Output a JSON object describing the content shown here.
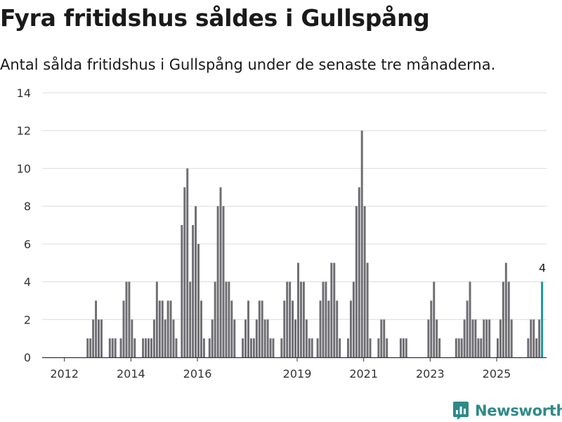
{
  "title": "Fyra fritidshus såldes i Gullspång",
  "subtitle": "Antal sålda fritidshus i Gullspång under de senaste tre månaderna.",
  "brand": {
    "name": "Newsworthy",
    "icon": "newsworthy-logo-icon",
    "color": "#2e8a8a"
  },
  "colors": {
    "bar": "#6d6d72",
    "highlight": "#1a9a94",
    "grid": "#dcdcdc",
    "axis": "#333333"
  },
  "chart_data": {
    "type": "bar",
    "title": "Fyra fritidshus såldes i Gullspång",
    "xlabel": "",
    "ylabel": "",
    "ylim": [
      0,
      14
    ],
    "yticks": [
      0,
      2,
      4,
      6,
      8,
      10,
      12,
      14
    ],
    "x_tick_labels": [
      {
        "label": "2012",
        "at": 2012.0
      },
      {
        "label": "2014",
        "at": 2014.0
      },
      {
        "label": "2016",
        "at": 2016.0
      },
      {
        "label": "2019",
        "at": 2019.0
      },
      {
        "label": "2021",
        "at": 2021.0
      },
      {
        "label": "2023",
        "at": 2023.0
      },
      {
        "label": "2025",
        "at": 2025.0
      }
    ],
    "x_range": [
      2011.33,
      2026.5
    ],
    "start": {
      "year": 2011,
      "month": 10
    },
    "values": [
      0,
      0,
      0,
      0,
      0,
      0,
      0,
      0,
      0,
      0,
      0,
      1,
      1,
      2,
      3,
      2,
      2,
      0,
      0,
      1,
      1,
      1,
      0,
      1,
      3,
      4,
      4,
      2,
      1,
      0,
      0,
      1,
      1,
      1,
      1,
      2,
      4,
      3,
      3,
      2,
      3,
      3,
      2,
      1,
      0,
      7,
      9,
      10,
      4,
      7,
      8,
      6,
      3,
      1,
      0,
      1,
      2,
      4,
      8,
      9,
      8,
      4,
      4,
      3,
      2,
      0,
      0,
      1,
      2,
      3,
      1,
      1,
      2,
      3,
      3,
      2,
      2,
      1,
      1,
      0,
      0,
      1,
      3,
      4,
      4,
      3,
      2,
      5,
      4,
      4,
      2,
      1,
      1,
      0,
      1,
      3,
      4,
      4,
      3,
      5,
      5,
      3,
      1,
      0,
      0,
      1,
      3,
      4,
      8,
      9,
      12,
      8,
      5,
      1,
      0,
      0,
      1,
      2,
      2,
      1,
      0,
      0,
      0,
      0,
      1,
      1,
      1,
      0,
      0,
      0,
      0,
      0,
      0,
      0,
      2,
      3,
      4,
      2,
      1,
      0,
      0,
      0,
      0,
      0,
      1,
      1,
      1,
      2,
      3,
      4,
      2,
      2,
      1,
      1,
      2,
      2,
      2,
      0,
      0,
      1,
      2,
      4,
      5,
      4,
      2,
      0,
      0,
      0,
      0,
      0,
      1,
      2,
      2,
      1,
      2,
      4
    ],
    "highlight_last": true,
    "annotation": {
      "text": "4",
      "target": "last-bar"
    }
  }
}
